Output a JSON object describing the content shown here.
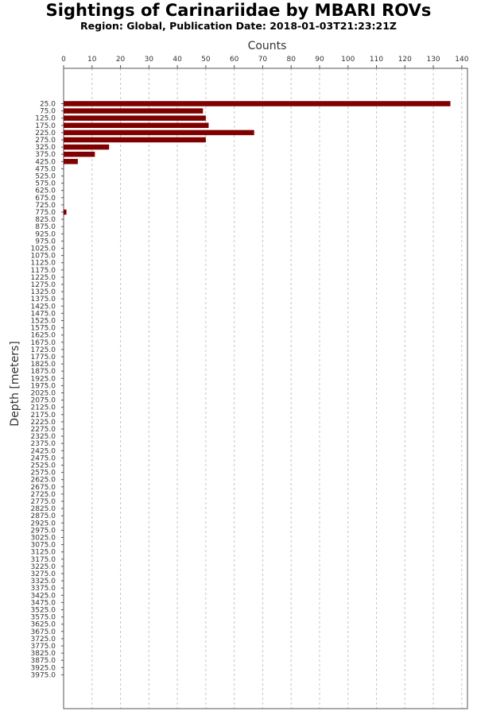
{
  "chart_data": {
    "type": "bar",
    "orientation": "horizontal",
    "title": "Sightings of Carinariidae by MBARI ROVs",
    "subtitle": "Region: Global, Publication Date: 2018-01-03T21:23:21Z",
    "xlabel": "Counts",
    "ylabel": "Depth [meters]",
    "xlim": [
      0,
      142
    ],
    "x_ticks": [
      0,
      10,
      20,
      30,
      40,
      50,
      60,
      70,
      80,
      90,
      100,
      110,
      120,
      130,
      140
    ],
    "x_axis_position": "top",
    "grid": "vertical dashed",
    "bar_color": "#7f0000",
    "categories": [
      "25.0",
      "75.0",
      "125.0",
      "175.0",
      "225.0",
      "275.0",
      "325.0",
      "375.0",
      "425.0",
      "475.0",
      "525.0",
      "575.0",
      "625.0",
      "675.0",
      "725.0",
      "775.0",
      "825.0",
      "875.0",
      "925.0",
      "975.0",
      "1025.0",
      "1075.0",
      "1125.0",
      "1175.0",
      "1225.0",
      "1275.0",
      "1325.0",
      "1375.0",
      "1425.0",
      "1475.0",
      "1525.0",
      "1575.0",
      "1625.0",
      "1675.0",
      "1725.0",
      "1775.0",
      "1825.0",
      "1875.0",
      "1925.0",
      "1975.0",
      "2025.0",
      "2075.0",
      "2125.0",
      "2175.0",
      "2225.0",
      "2275.0",
      "2325.0",
      "2375.0",
      "2425.0",
      "2475.0",
      "2525.0",
      "2575.0",
      "2625.0",
      "2675.0",
      "2725.0",
      "2775.0",
      "2825.0",
      "2875.0",
      "2925.0",
      "2975.0",
      "3025.0",
      "3075.0",
      "3125.0",
      "3175.0",
      "3225.0",
      "3275.0",
      "3325.0",
      "3375.0",
      "3425.0",
      "3475.0",
      "3525.0",
      "3575.0",
      "3625.0",
      "3675.0",
      "3725.0",
      "3775.0",
      "3825.0",
      "3875.0",
      "3925.0",
      "3975.0"
    ],
    "values": [
      136,
      49,
      50,
      51,
      67,
      50,
      16,
      11,
      5,
      0,
      0,
      0,
      0,
      0,
      0,
      1,
      0,
      0,
      0,
      0,
      0,
      0,
      0,
      0,
      0,
      0,
      0,
      0,
      0,
      0,
      0,
      0,
      0,
      0,
      0,
      0,
      0,
      0,
      0,
      0,
      0,
      0,
      0,
      0,
      0,
      0,
      0,
      0,
      0,
      0,
      0,
      0,
      0,
      0,
      0,
      0,
      0,
      0,
      0,
      0,
      0,
      0,
      0,
      0,
      0,
      0,
      0,
      0,
      0,
      0,
      0,
      0,
      0,
      0,
      0,
      0,
      0,
      0,
      0,
      0
    ]
  }
}
